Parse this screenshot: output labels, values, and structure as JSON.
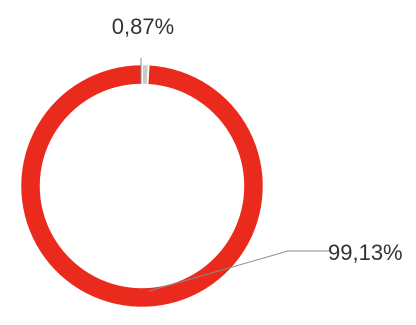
{
  "chart_data": {
    "type": "pie",
    "variant": "donut",
    "series": [
      {
        "values": [
          0.87,
          99.13
        ],
        "data_labels": [
          "0,87%",
          "99,13%"
        ],
        "colors": [
          "#c9c9c9",
          "#ea2a1c"
        ]
      }
    ],
    "legend": "none",
    "title": ""
  }
}
